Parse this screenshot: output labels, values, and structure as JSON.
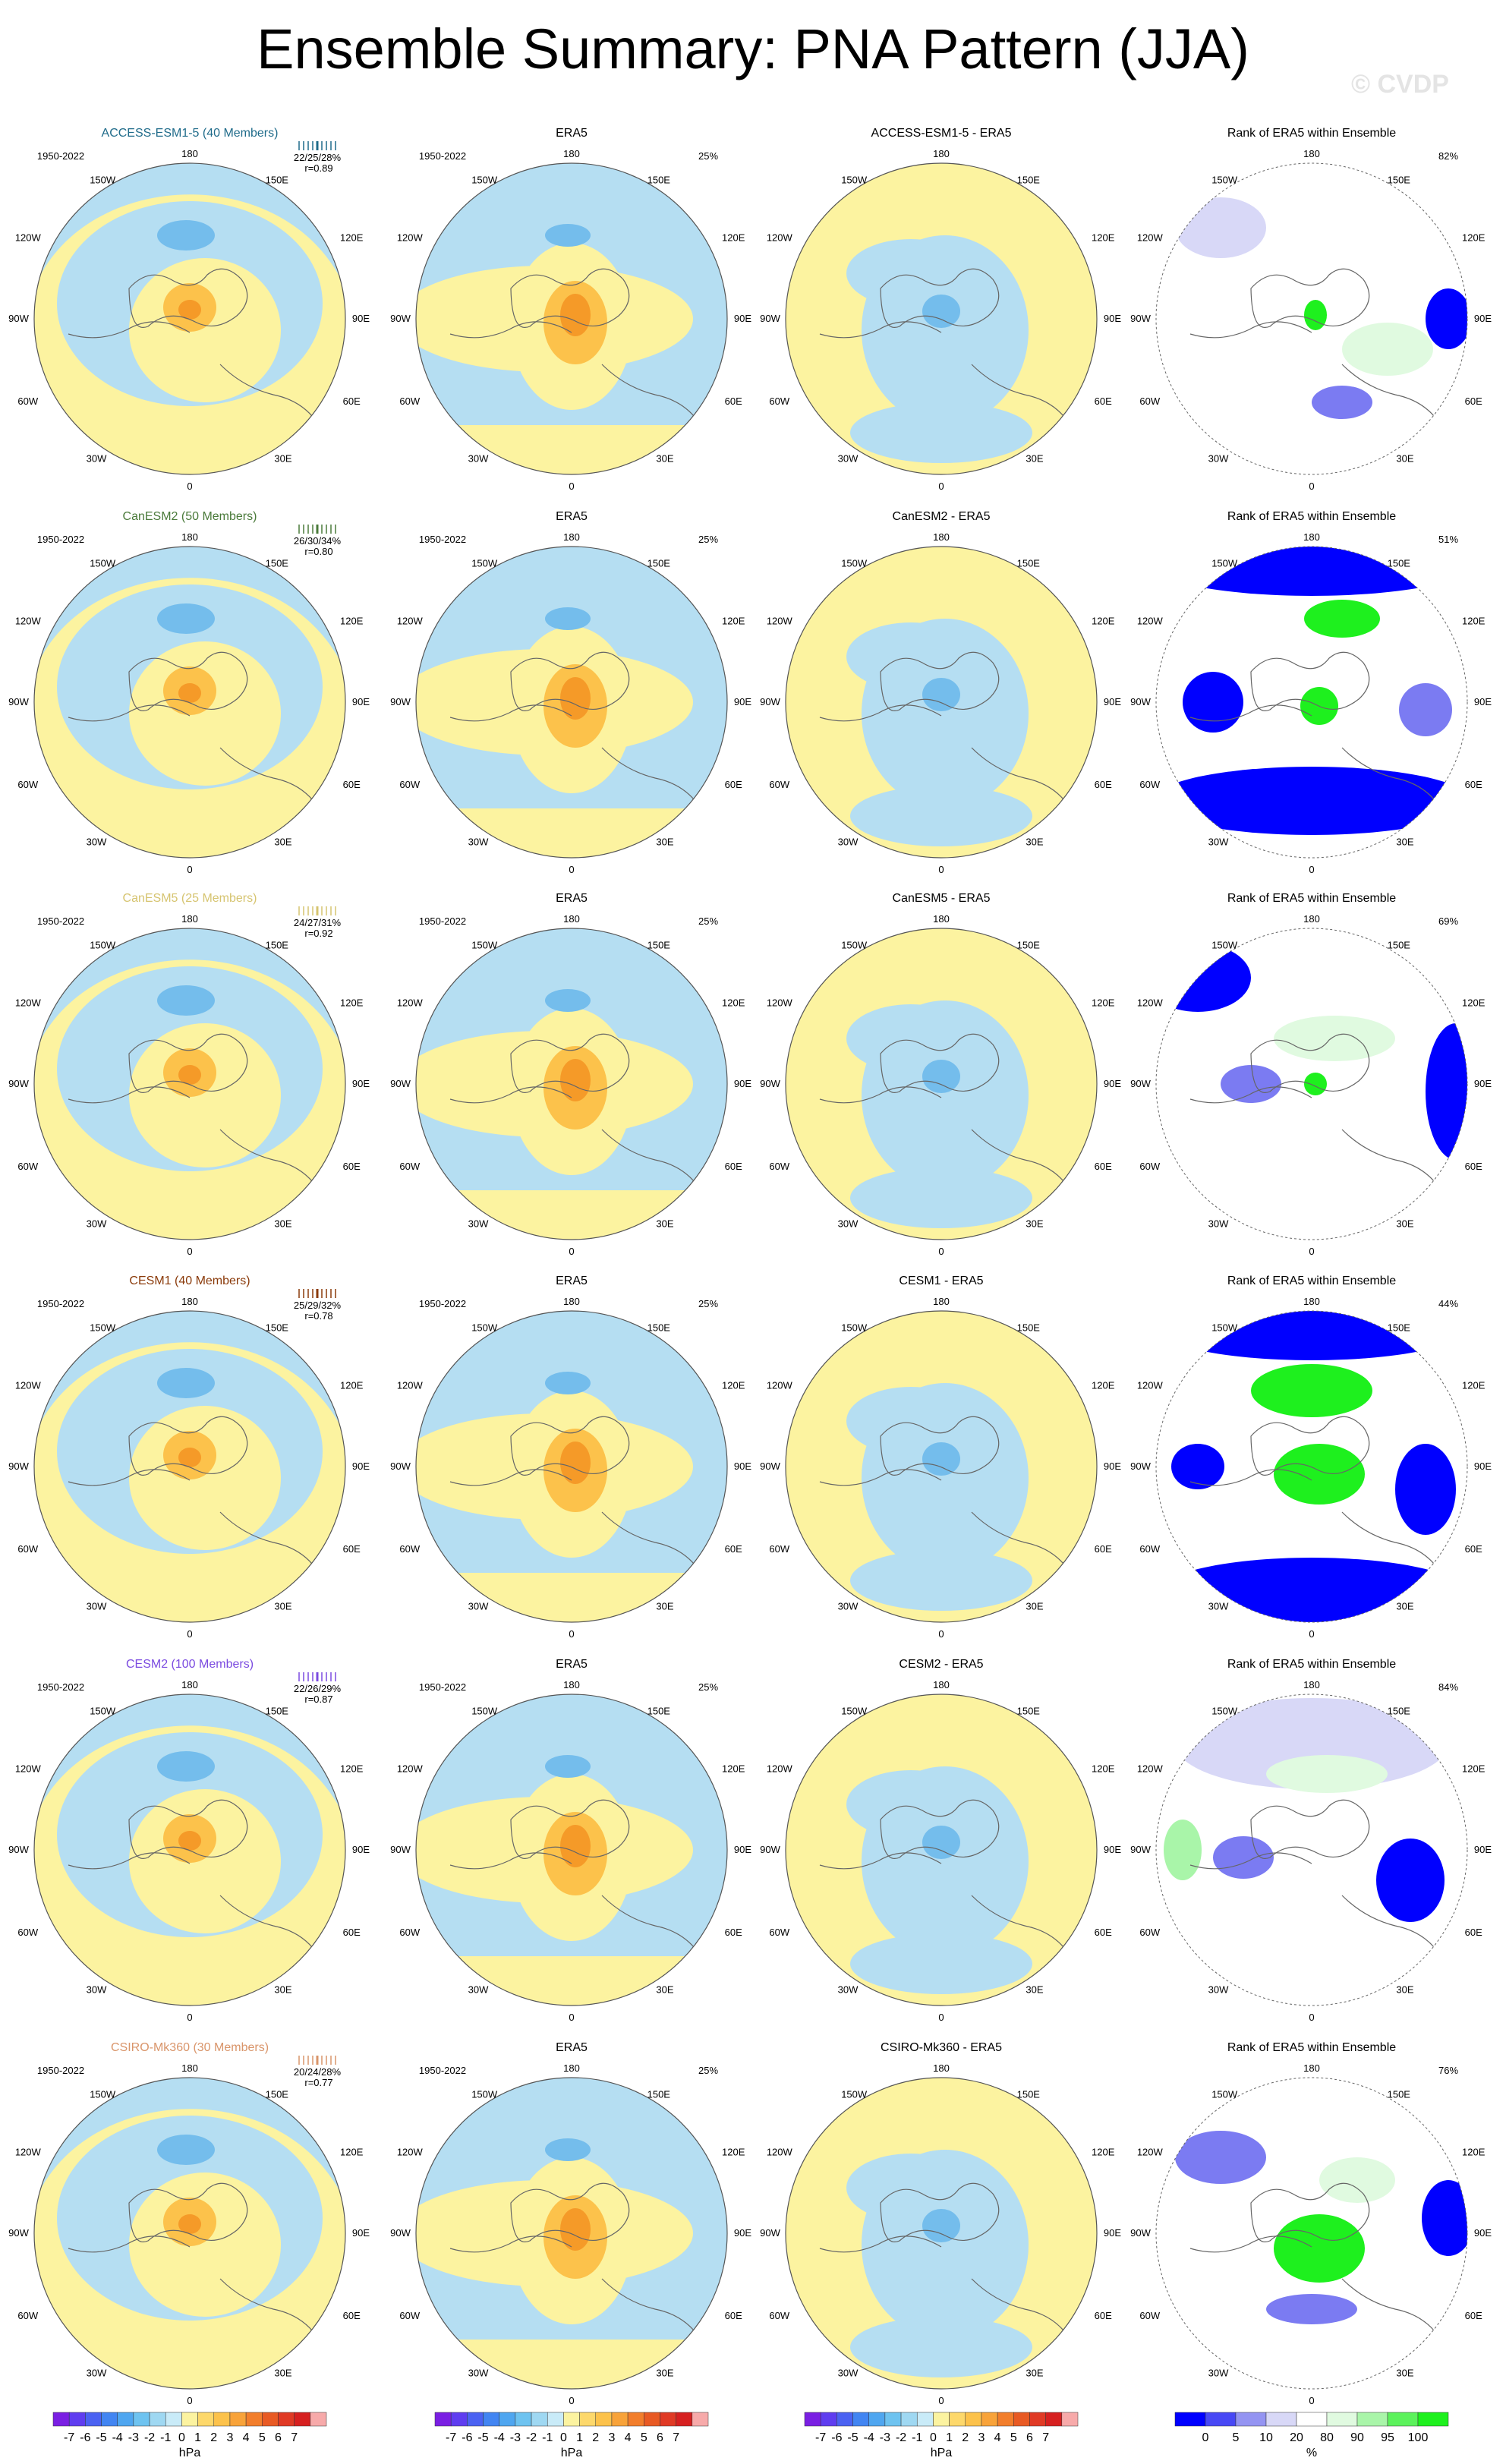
{
  "title": "Ensemble Summary: PNA Pattern (JJA)",
  "watermark": "© CVDP",
  "units": {
    "pressure": "hPa",
    "rank": "%"
  },
  "colors": {
    "positive_1": "#fcf3a0",
    "positive_2": "#fcc24b",
    "positive_3": "#f59a28",
    "negative_1": "#b5def2",
    "negative_2": "#74bdec",
    "rank_low_1": "#0000ff",
    "rank_low_2": "#7b7bf2",
    "rank_low_3": "#d8d8f7",
    "rank_high_1": "#1ef01e",
    "rank_high_2": "#a9f5a9",
    "rank_high_3": "#e0fae0"
  },
  "colorbar_pressure": {
    "labels": [
      "-7",
      "-6",
      "-5",
      "-4",
      "-3",
      "-2",
      "-1",
      "0",
      "1",
      "2",
      "3",
      "4",
      "5",
      "6",
      "7"
    ],
    "colors": [
      "#7a1fe3",
      "#5f3df0",
      "#4b62f2",
      "#4285f2",
      "#4fa6f0",
      "#6ec3f0",
      "#9fd8f2",
      "#c9ebf8",
      "#fcf3a0",
      "#fdd86b",
      "#fcc24b",
      "#f8a33a",
      "#f27e2c",
      "#e85a24",
      "#e03a25",
      "#d62020",
      "#f7aaaa"
    ]
  },
  "colorbar_rank": {
    "labels": [
      "0",
      "5",
      "10",
      "20",
      "80",
      "90",
      "95",
      "100"
    ],
    "colors": [
      "#0000ff",
      "#4848f5",
      "#9494f2",
      "#d8d8f7",
      "#ffffff",
      "#e0fae0",
      "#a9f5a9",
      "#5cf25c",
      "#1ef01e"
    ]
  },
  "map_labels": {
    "top": "180",
    "bottom": "0",
    "ul": "150W",
    "ur": "150E",
    "l1": "120W",
    "r1": "120E",
    "l2": "90W",
    "r2": "90E",
    "l3": "60W",
    "r3": "60E",
    "ll": "30W",
    "lr": "30E"
  },
  "panels": {
    "era5_title": "ERA5",
    "rank_title": "Rank of ERA5 within Ensemble",
    "period": "1950-2022",
    "era5_pct": "25%"
  },
  "rows": [
    {
      "model": "ACCESS-ESM1-5 (40 Members)",
      "model_color": "#1f6b8a",
      "diff_title": "ACCESS-ESM1-5 - ERA5",
      "stats": "22/25/28%",
      "corr": "r=0.89",
      "rank_pct": "82%"
    },
    {
      "model": "CanESM2 (50 Members)",
      "model_color": "#4a7a3a",
      "diff_title": "CanESM2 - ERA5",
      "stats": "26/30/34%",
      "corr": "r=0.80",
      "rank_pct": "51%"
    },
    {
      "model": "CanESM5 (25 Members)",
      "model_color": "#d6c470",
      "diff_title": "CanESM5 - ERA5",
      "stats": "24/27/31%",
      "corr": "r=0.92",
      "rank_pct": "69%"
    },
    {
      "model": "CESM1 (40 Members)",
      "model_color": "#8a3a0a",
      "diff_title": "CESM1 - ERA5",
      "stats": "25/29/32%",
      "corr": "r=0.78",
      "rank_pct": "44%"
    },
    {
      "model": "CESM2 (100 Members)",
      "model_color": "#7b4be0",
      "diff_title": "CESM2 - ERA5",
      "stats": "22/26/29%",
      "corr": "r=0.87",
      "rank_pct": "84%"
    },
    {
      "model": "CSIRO-Mk360 (30 Members)",
      "model_color": "#d9956a",
      "diff_title": "CSIRO-Mk360 - ERA5",
      "stats": "20/24/28%",
      "corr": "r=0.77",
      "rank_pct": "76%"
    }
  ]
}
